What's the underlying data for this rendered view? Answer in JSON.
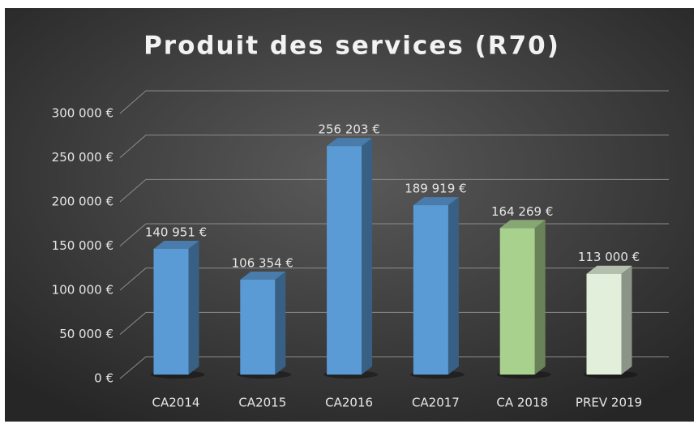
{
  "chart_data": {
    "type": "bar3d",
    "title": "Produit des services (R70)",
    "categories": [
      "CA2014",
      "CA2015",
      "CA2016",
      "CA2017",
      "CA 2018",
      "PREV 2019"
    ],
    "values": [
      140951,
      106354,
      256203,
      189919,
      164269,
      113000
    ],
    "value_labels": [
      "140 951 €",
      "106 354 €",
      "256 203 €",
      "189 919 €",
      "164 269 €",
      "113 000 €"
    ],
    "colors": [
      "#5b9bd5",
      "#5b9bd5",
      "#5b9bd5",
      "#5b9bd5",
      "#a9d18e",
      "#e2efda"
    ],
    "ylim": [
      0,
      300000
    ],
    "yticks": [
      {
        "value": 0,
        "label": "0 €"
      },
      {
        "value": 50000,
        "label": "50 000 €"
      },
      {
        "value": 100000,
        "label": "100 000 €"
      },
      {
        "value": 150000,
        "label": "150 000 €"
      },
      {
        "value": 200000,
        "label": "200 000 €"
      },
      {
        "value": 250000,
        "label": "250 000 €"
      },
      {
        "value": 300000,
        "label": "300 000 €"
      }
    ],
    "grid": true
  }
}
